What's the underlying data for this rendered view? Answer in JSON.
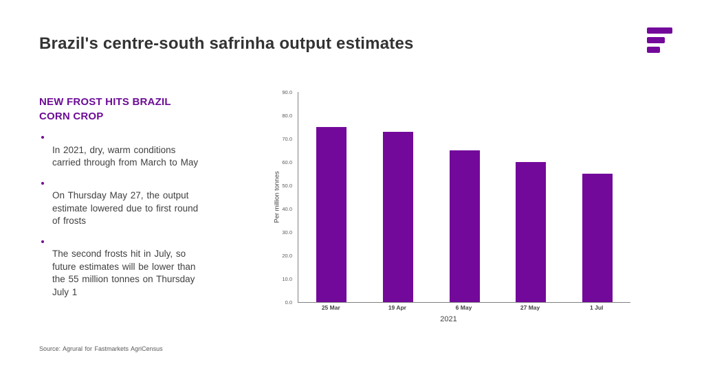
{
  "header": {
    "title": "Brazil's centre-south safrinha output estimates"
  },
  "logo": {
    "name": "fastmarkets-logo",
    "color": "#73099B"
  },
  "panel": {
    "heading": "NEW FROST HITS BRAZIL\nCORN CROP",
    "bullets": [
      "In 2021, dry, warm conditions\ncarried through from March to May",
      "On Thursday May 27, the output\nestimate lowered due to first round\nof frosts",
      "The second frosts hit in July, so\nfuture estimates will be lower than\nthe 55 million tonnes on Thursday\nJuly 1"
    ]
  },
  "chart_data": {
    "type": "bar",
    "categories": [
      "25 Mar",
      "19 Apr",
      "6 May",
      "27 May",
      "1 Jul"
    ],
    "values": [
      75.0,
      73.0,
      65.0,
      60.0,
      55.0
    ],
    "title": "",
    "xlabel": "2021",
    "ylabel": "Per million tonnes",
    "ylim": [
      0,
      90
    ],
    "ytick_step": 10,
    "ytick_decimals": 1,
    "bar_color": "#73099B",
    "axis_color": "#808080",
    "grid": false,
    "legend": "none"
  },
  "footer": {
    "source": "Source: Agrural for Fastmarkets AgriCensus"
  },
  "colors": {
    "accent_purple": "#73099B",
    "heading_purple": "#6C0C96",
    "title_text": "#333333",
    "body_text": "#3F3F3F",
    "muted_text": "#595959"
  }
}
